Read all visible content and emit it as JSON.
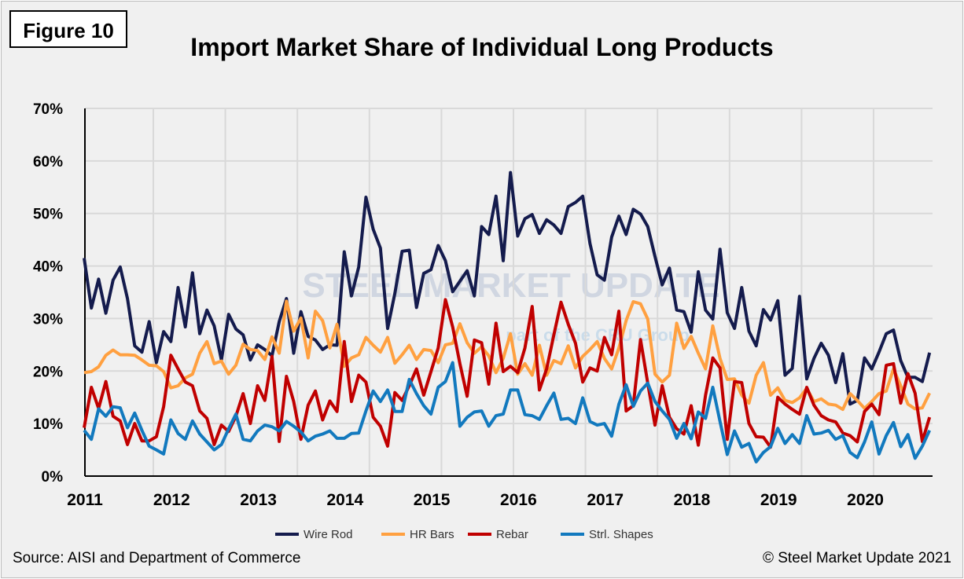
{
  "figure_label": "Figure 10",
  "source": "Source: AISI and Department of Commerce",
  "copyright": "© Steel Market Update 2021",
  "watermark": {
    "line1": "STEEL MARKET UPDATE",
    "line2": "part of the CRU Group"
  },
  "chart_data": {
    "type": "line",
    "title": "Import Market Share of Individual Long Products",
    "xlabel": "",
    "ylabel": "",
    "x_start": "2011-01",
    "x_end": "2020-10",
    "frequency": "monthly",
    "x_tick_labels": [
      "2011",
      "2012",
      "2013",
      "2014",
      "2015",
      "2016",
      "2017",
      "2018",
      "2019",
      "2020"
    ],
    "y_tick_labels": [
      "0%",
      "10%",
      "20%",
      "30%",
      "40%",
      "50%",
      "60%",
      "70%"
    ],
    "ylim": [
      0,
      70
    ],
    "grid": true,
    "legend_position": "bottom",
    "series": [
      {
        "name": "Wire Rod",
        "color": "#141b4d",
        "values": [
          41.5,
          32,
          37.5,
          31,
          37.3,
          39.8,
          33.8,
          24.8,
          23.6,
          29.4,
          21.6,
          27.5,
          25.6,
          35.9,
          28.4,
          38.7,
          27.1,
          31.6,
          28.6,
          22.1,
          30.8,
          28,
          26.9,
          22.1,
          25,
          24.1,
          22.9,
          29.4,
          33.8,
          23.4,
          31.3,
          26.6,
          25.9,
          24.1,
          25,
          24.9,
          42.7,
          34.3,
          39.8,
          53.1,
          47,
          43.4,
          28.1,
          34.8,
          42.8,
          43,
          32.1,
          38.6,
          39.3,
          43.9,
          41,
          35.1,
          37.1,
          39.1,
          34.3,
          47.5,
          46,
          53.3,
          41,
          57.8,
          45.7,
          49,
          49.8,
          46.2,
          48.8,
          47.8,
          46.2,
          51.3,
          52.1,
          53.3,
          44.3,
          38.3,
          37.3,
          45.5,
          49.5,
          46,
          50.8,
          49.9,
          47.5,
          41.8,
          36.4,
          39.6,
          31.6,
          31.3,
          27.4,
          38.9,
          31.6,
          29.9,
          43.2,
          31.1,
          28.1,
          35.9,
          27.6,
          24.8,
          31.7,
          29.7,
          33.4,
          19.2,
          20.5,
          34.2,
          18.5,
          22.4,
          25.3,
          23,
          17.8,
          23.3,
          13.7,
          14.4,
          22.5,
          20.4,
          23.6,
          27.1,
          27.8,
          22,
          18.8,
          18.8,
          18,
          23.5
        ]
      },
      {
        "name": "HR Bars",
        "color": "#ffa040",
        "values": [
          19.7,
          19.9,
          20.8,
          23,
          24,
          23.1,
          23.1,
          23,
          22.1,
          21.1,
          21,
          19.9,
          16.8,
          17.2,
          18.7,
          19.4,
          23.4,
          25.6,
          21.4,
          21.9,
          19.4,
          21.1,
          25.1,
          24.1,
          23.9,
          22.2,
          26.5,
          23.4,
          33.3,
          27.6,
          30.1,
          22.5,
          31.4,
          29.6,
          24.4,
          28.9,
          20.9,
          22.5,
          23.1,
          26.4,
          24.9,
          23.6,
          26.4,
          21.5,
          23.1,
          24.9,
          22.2,
          24.1,
          23.9,
          21.6,
          25,
          25.3,
          29,
          25.4,
          23.4,
          24.6,
          22.9,
          19.7,
          22.4,
          27.1,
          19.4,
          21.4,
          19.2,
          24.9,
          19.2,
          22,
          21.4,
          24.8,
          20.6,
          22.8,
          24.1,
          25.6,
          22.4,
          20.4,
          24.4,
          29.6,
          33.2,
          32.8,
          29.9,
          19.4,
          17.9,
          19.2,
          29.1,
          24.3,
          26.6,
          23.4,
          20.4,
          28.6,
          22.4,
          18.4,
          18.5,
          15.4,
          13.9,
          19.2,
          21.6,
          15.4,
          16.8,
          14.4,
          14,
          14.9,
          16.7,
          14.2,
          14.7,
          13.7,
          13.5,
          12.7,
          15.7,
          14.4,
          12.9,
          14.2,
          15.7,
          16.2,
          20.4,
          17.2,
          13.7,
          12.8,
          13,
          15.8
        ]
      },
      {
        "name": "Rebar",
        "color": "#c00000",
        "values": [
          9.2,
          16.9,
          12.9,
          18,
          11.4,
          10.5,
          6,
          10,
          6.7,
          6.7,
          7.5,
          13.2,
          23,
          20.4,
          17.9,
          17.2,
          12.4,
          11,
          6,
          9.7,
          8.5,
          11.4,
          15.7,
          10,
          17.2,
          14.4,
          22.8,
          6.6,
          19,
          14.2,
          7,
          13.5,
          16.2,
          10.7,
          14.3,
          12.3,
          25.6,
          14.2,
          19.2,
          17.9,
          11.2,
          9.5,
          5.7,
          15.9,
          14.4,
          17.2,
          20.4,
          15.4,
          19.9,
          24.4,
          33.6,
          28.4,
          21.4,
          15.2,
          25.9,
          25.4,
          17.5,
          29.1,
          19.9,
          20.9,
          19.7,
          24.4,
          32.3,
          16.4,
          20.4,
          26.9,
          33.1,
          28.9,
          25.3,
          17.9,
          20.6,
          20,
          26.4,
          23.1,
          31.4,
          12.4,
          13.4,
          26,
          17.7,
          9.7,
          17.2,
          11.2,
          9,
          8,
          13.4,
          5.9,
          15.4,
          22.5,
          20.6,
          7,
          18,
          17.8,
          10,
          7.5,
          7.4,
          5.5,
          15,
          13.7,
          12.7,
          11.8,
          16.9,
          13.5,
          11.5,
          10.7,
          10.3,
          8.2,
          7.7,
          6.5,
          12.3,
          13.7,
          11.7,
          21.1,
          21.4,
          13.9,
          19.5,
          15.8,
          6.6,
          11.2
        ]
      },
      {
        "name": "Strl. Shapes",
        "color": "#1279be",
        "values": [
          8.7,
          7,
          12.8,
          11.4,
          13.2,
          13,
          9.2,
          12,
          8.7,
          5.7,
          5,
          4.2,
          10.7,
          8.1,
          7,
          10.5,
          8,
          6.5,
          5,
          6,
          9,
          11.8,
          7,
          6.7,
          8.6,
          9.7,
          9.4,
          8.6,
          10.4,
          9.5,
          8.4,
          6.7,
          7.6,
          8,
          8.6,
          7.2,
          7.2,
          8.1,
          8.2,
          12.4,
          16.2,
          14.2,
          16.4,
          12.3,
          12.3,
          18.4,
          15.7,
          13.4,
          11.8,
          16.9,
          18,
          21.6,
          9.5,
          11.2,
          12.2,
          12.4,
          9.5,
          11.5,
          11.8,
          16.4,
          16.4,
          11.7,
          11.5,
          10.8,
          13.4,
          15.8,
          10.8,
          11,
          10,
          14.9,
          10.4,
          9.7,
          10,
          7.6,
          13.7,
          17.4,
          13.3,
          16.2,
          17.7,
          14.2,
          12.4,
          10.8,
          7.2,
          10,
          7.1,
          12.2,
          11,
          16.9,
          10.4,
          4.1,
          8.6,
          5.5,
          6.2,
          2.7,
          4.5,
          5.6,
          9.1,
          6.2,
          7.9,
          6.2,
          11.5,
          8,
          8.2,
          8.7,
          7,
          7.7,
          4.5,
          3.5,
          6.5,
          10.3,
          4.2,
          7.7,
          10.2,
          5.6,
          7.9,
          3.4,
          5.7,
          8.7
        ]
      }
    ]
  }
}
